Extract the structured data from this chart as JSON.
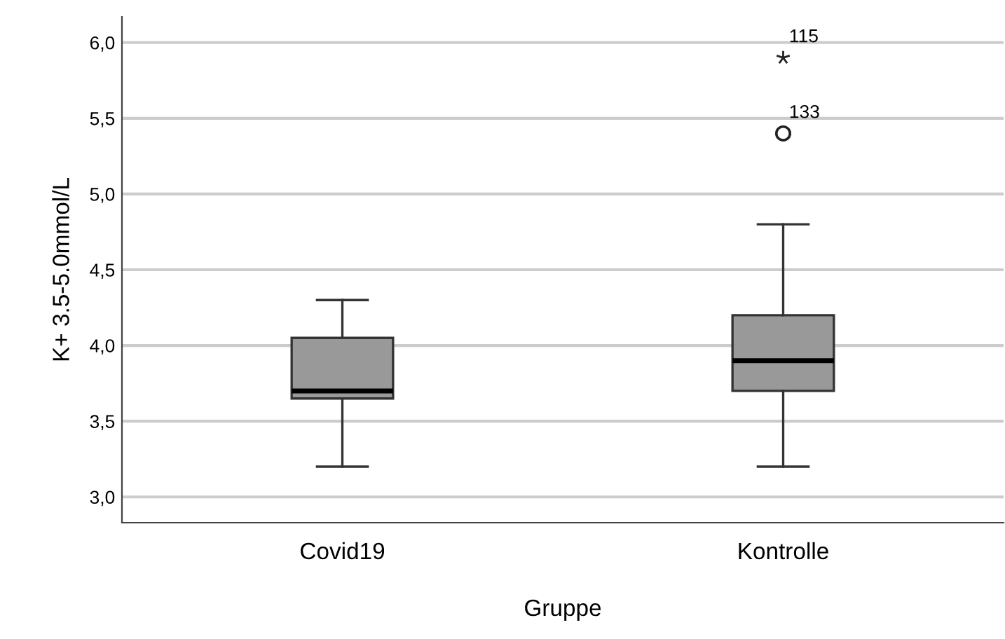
{
  "chart_data": {
    "type": "box",
    "xlabel": "Gruppe",
    "ylabel": "K+ 3.5-5.0mmol/L",
    "categories": [
      "Covid19",
      "Kontrolle"
    ],
    "boxes": [
      {
        "low": 3.2,
        "q1": 3.65,
        "median": 3.7,
        "q3": 4.05,
        "high": 4.3
      },
      {
        "low": 3.2,
        "q1": 3.7,
        "median": 3.9,
        "q3": 4.2,
        "high": 4.8,
        "outliers": [
          5.9,
          5.4
        ]
      }
    ],
    "colors": [
      "#999999",
      "#999999"
    ],
    "ylim": [
      2.83,
      6.17
    ],
    "yticks": [
      {
        "value": 3.0,
        "label": "3,0"
      },
      {
        "value": 3.5,
        "label": "3,5"
      },
      {
        "value": 4.0,
        "label": "4,0"
      },
      {
        "value": 4.5,
        "label": "4,5"
      },
      {
        "value": 5.0,
        "label": "5,0"
      },
      {
        "value": 5.5,
        "label": "5,5"
      },
      {
        "value": 6.0,
        "label": "6,0"
      }
    ],
    "grid": "y",
    "annotations": [
      "115",
      "133"
    ]
  }
}
